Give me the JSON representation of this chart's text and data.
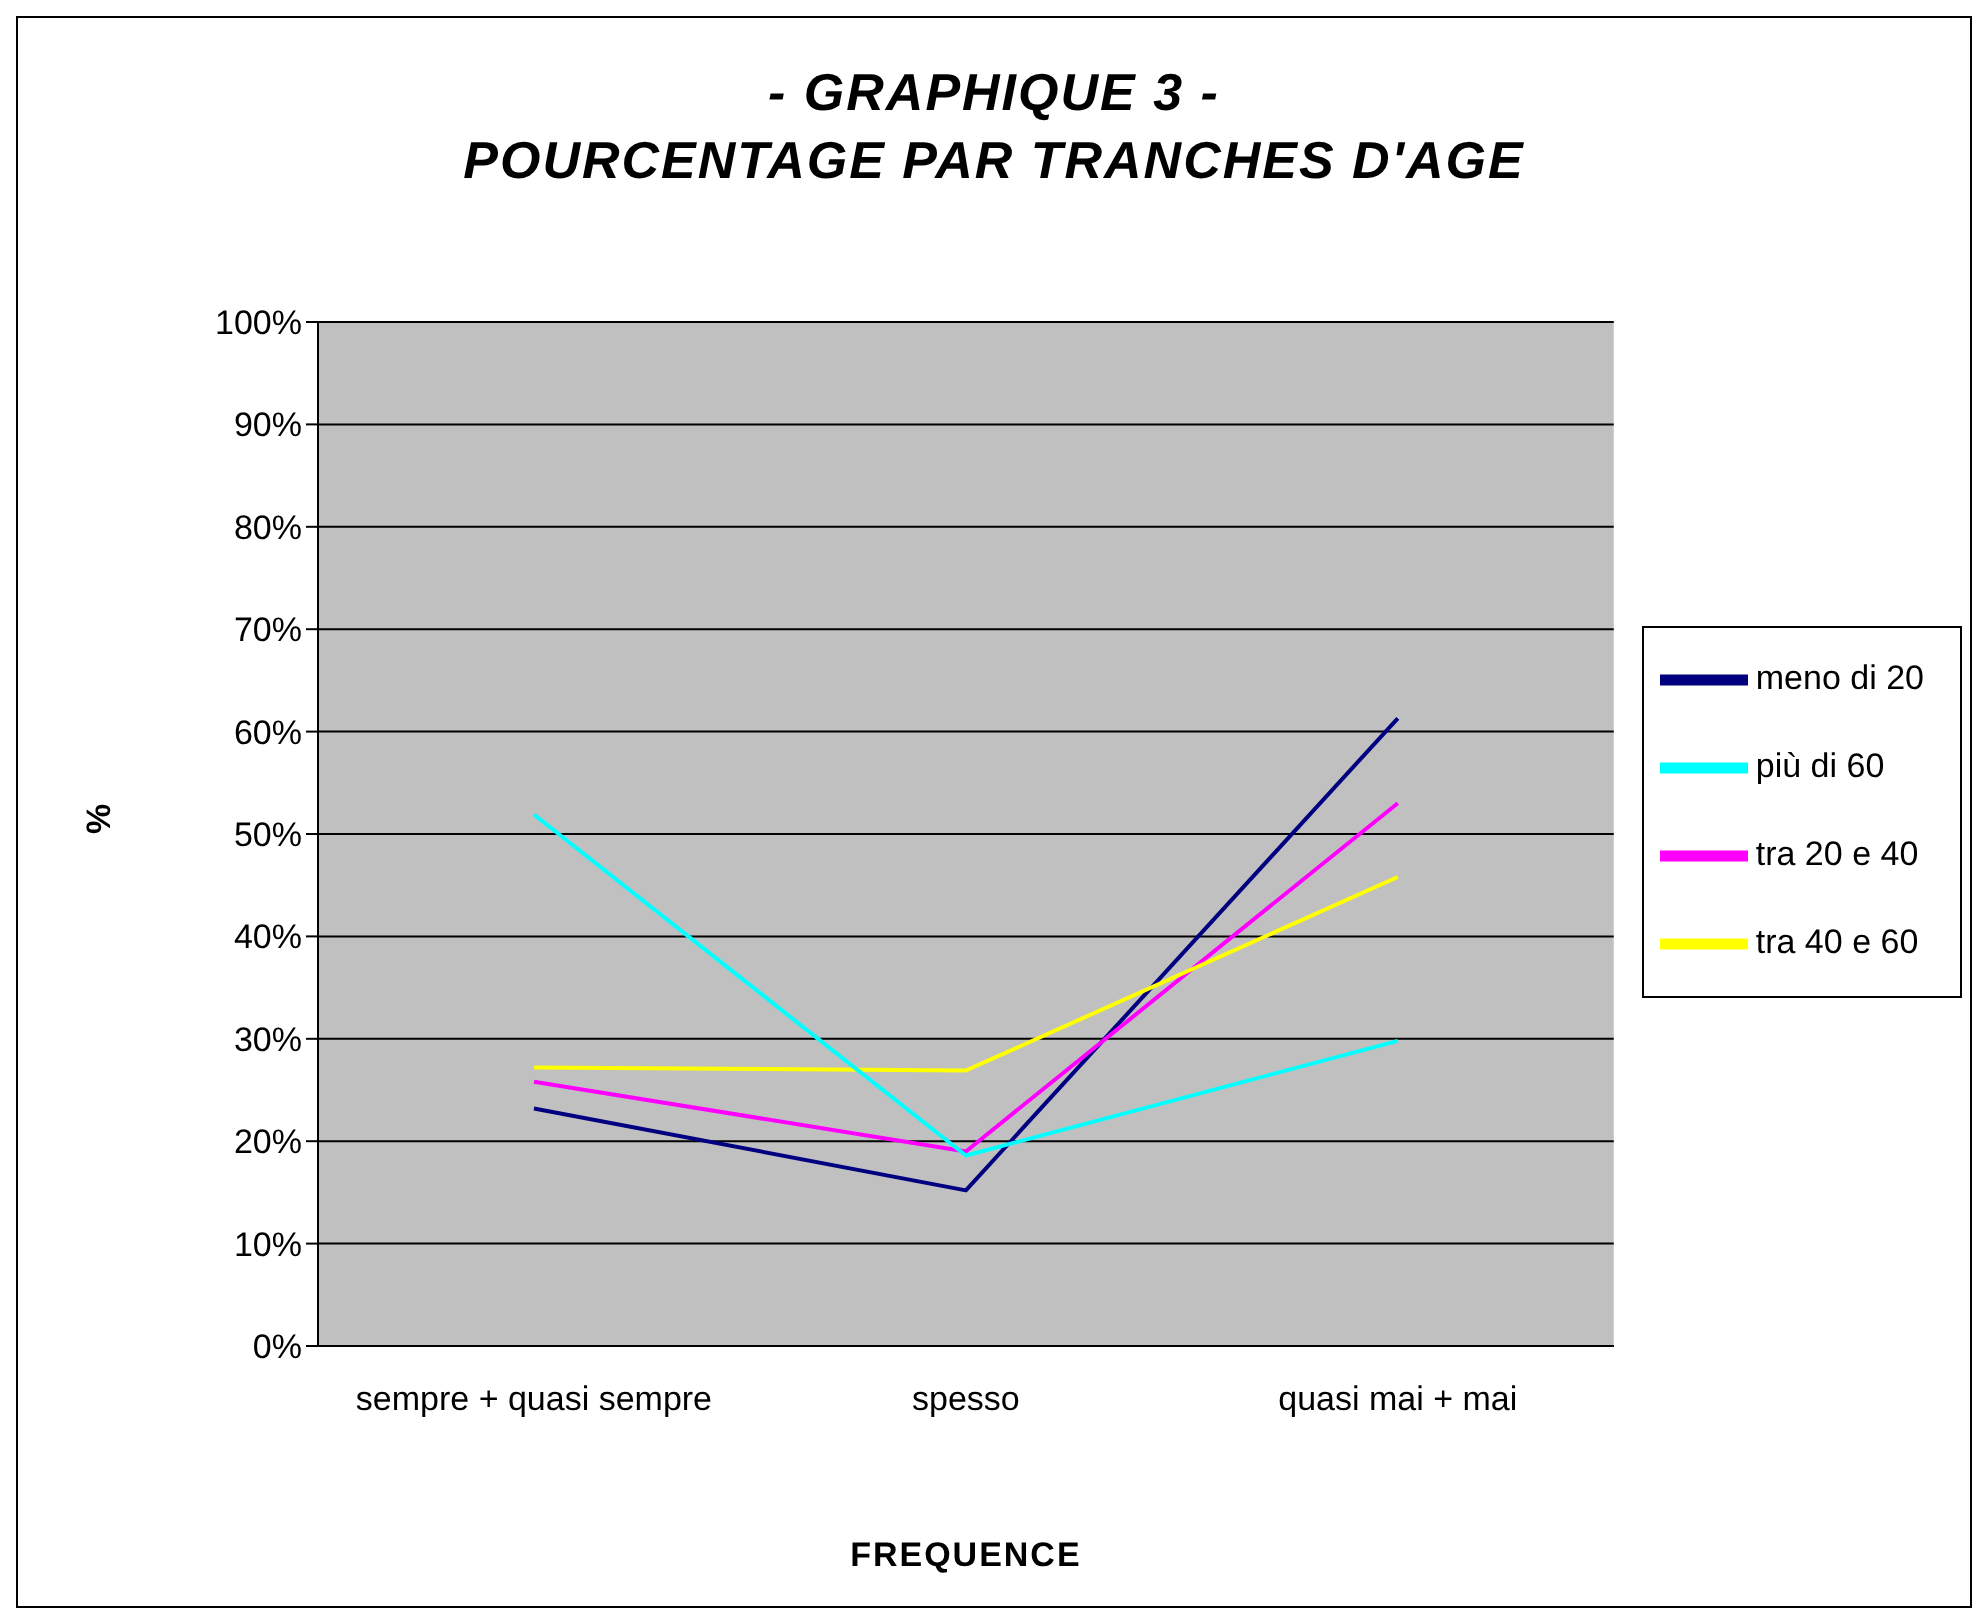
{
  "chart_data": {
    "type": "line",
    "title": "- GRAPHIQUE 3 -\nPOURCENTAGE PAR TRANCHES D'AGE",
    "xlabel": "FREQUENCE",
    "ylabel": "%",
    "categories": [
      "sempre + quasi sempre",
      "spesso",
      "quasi mai + mai"
    ],
    "series": [
      {
        "name": "meno di 20",
        "color": "#000080",
        "values": [
          23.2,
          15.2,
          61.3
        ]
      },
      {
        "name": "tra 20 e 40",
        "color": "#ff00ff",
        "values": [
          25.8,
          19.0,
          53.0
        ]
      },
      {
        "name": "tra 40 e 60",
        "color": "#ffff00",
        "values": [
          27.2,
          26.9,
          45.8
        ]
      },
      {
        "name": "più di 60",
        "color": "#00ffff",
        "values": [
          51.9,
          18.6,
          29.8
        ]
      }
    ],
    "ylim": [
      0,
      100
    ],
    "yticks": [
      {
        "value": 0,
        "label": "0%"
      },
      {
        "value": 10,
        "label": "10%"
      },
      {
        "value": 20,
        "label": "20%"
      },
      {
        "value": 30,
        "label": "30%"
      },
      {
        "value": 40,
        "label": "40%"
      },
      {
        "value": 50,
        "label": "50%"
      },
      {
        "value": 60,
        "label": "60%"
      },
      {
        "value": 70,
        "label": "70%"
      },
      {
        "value": 80,
        "label": "80%"
      },
      {
        "value": 90,
        "label": "90%"
      },
      {
        "value": 100,
        "label": "100%"
      }
    ],
    "grid": "y",
    "legend": "right",
    "marker": "none",
    "line_style": "solid"
  }
}
